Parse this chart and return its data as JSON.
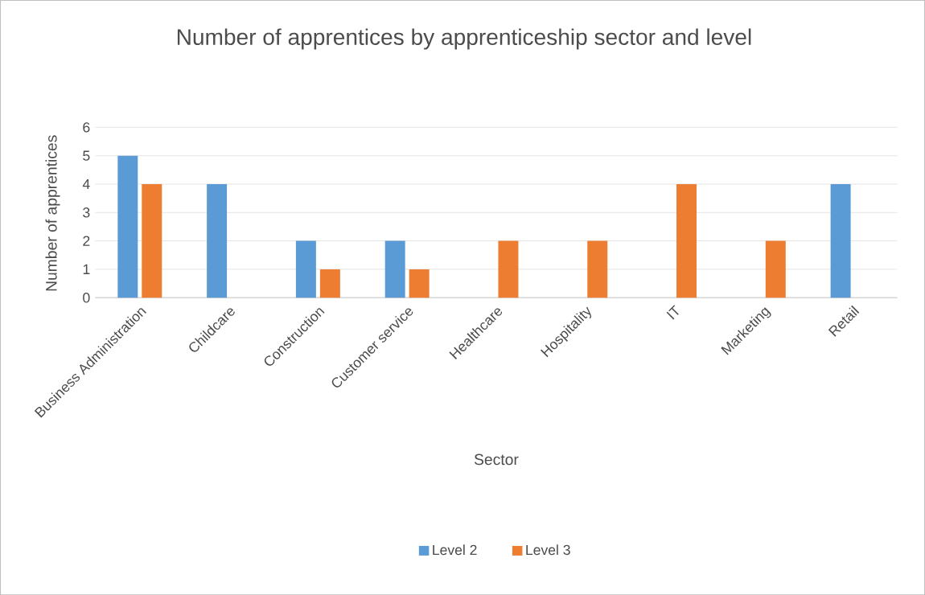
{
  "chart_data": {
    "type": "bar",
    "title": "Number of apprentices by apprenticeship sector and level",
    "xlabel": "Sector",
    "ylabel": "Number of apprentices",
    "categories": [
      "Business Administration",
      "Childcare",
      "Construction",
      "Customer service",
      "Healthcare",
      "Hospitality",
      "IT",
      "Marketing",
      "Retail"
    ],
    "series": [
      {
        "name": "Level 2",
        "color": "#5b9bd5",
        "values": [
          5,
          4,
          2,
          2,
          0,
          0,
          0,
          0,
          4
        ]
      },
      {
        "name": "Level 3",
        "color": "#ed7d31",
        "values": [
          4,
          0,
          1,
          1,
          2,
          2,
          4,
          2,
          0
        ]
      }
    ],
    "ylim": [
      0,
      6
    ],
    "yticks": [
      0,
      1,
      2,
      3,
      4,
      5,
      6
    ],
    "grid": "y",
    "legend": "bottom"
  }
}
